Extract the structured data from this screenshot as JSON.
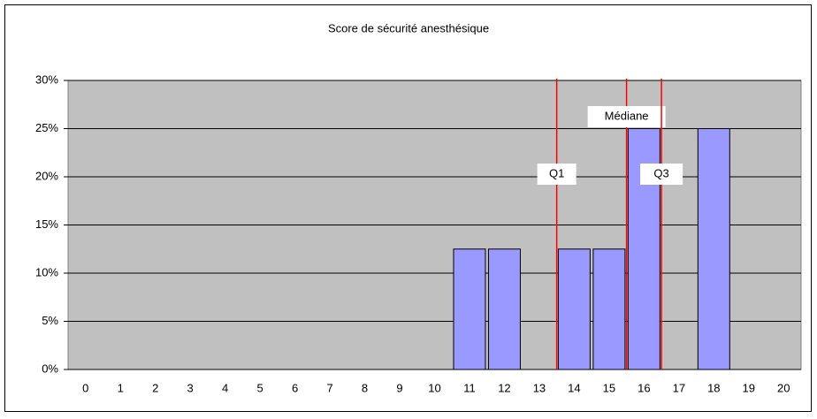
{
  "chart_data": {
    "type": "bar",
    "title": "Score de sécurité anesthésique",
    "categories": [
      "0",
      "1",
      "2",
      "3",
      "4",
      "5",
      "6",
      "7",
      "8",
      "9",
      "10",
      "11",
      "12",
      "13",
      "14",
      "15",
      "16",
      "17",
      "18",
      "19",
      "20"
    ],
    "values": [
      0,
      0,
      0,
      0,
      0,
      0,
      0,
      0,
      0,
      0,
      0,
      12.5,
      12.5,
      0,
      12.5,
      12.5,
      25,
      0,
      25,
      0,
      0
    ],
    "color": "#9999ff",
    "ylim": [
      0,
      30
    ],
    "yticks": [
      {
        "value": 0,
        "label": "0%"
      },
      {
        "value": 5,
        "label": "5%"
      },
      {
        "value": 10,
        "label": "10%"
      },
      {
        "value": 15,
        "label": "15%"
      },
      {
        "value": 20,
        "label": "20%"
      },
      {
        "value": 25,
        "label": "25%"
      },
      {
        "value": 30,
        "label": "30%"
      }
    ],
    "grid": true,
    "markers": [
      {
        "label": "Q1",
        "x": 13.5,
        "color": "#ff0000"
      },
      {
        "label": "Médiane",
        "x": 15.5,
        "color": "#ff0000"
      },
      {
        "label": "Q3",
        "x": 16.5,
        "color": "#ff0000"
      }
    ]
  }
}
